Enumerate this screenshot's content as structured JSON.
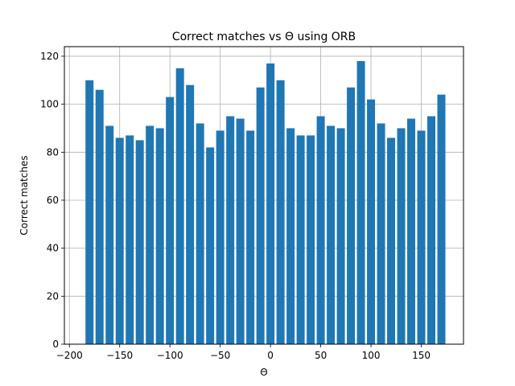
{
  "chart_data": {
    "type": "bar",
    "title": "Correct matches vs Θ  using ORB",
    "xlabel": "Θ",
    "ylabel": "Correct matches",
    "xlim": [
      -205,
      192
    ],
    "ylim": [
      0,
      124
    ],
    "xticks": [
      -200,
      -150,
      -100,
      -50,
      0,
      50,
      100,
      150
    ],
    "xtick_labels": [
      "−200",
      "−150",
      "−100",
      "−50",
      "0",
      "50",
      "100",
      "150"
    ],
    "yticks": [
      0,
      20,
      40,
      60,
      80,
      100,
      120
    ],
    "ytick_labels": [
      "0",
      "20",
      "40",
      "60",
      "80",
      "100",
      "120"
    ],
    "grid": true,
    "bar_color": "#1f77b4",
    "bar_width": 8,
    "x": [
      -180,
      -170,
      -160,
      -150,
      -140,
      -130,
      -120,
      -110,
      -100,
      -90,
      -80,
      -70,
      -60,
      -50,
      -40,
      -30,
      -20,
      -10,
      0,
      10,
      20,
      30,
      40,
      50,
      60,
      70,
      80,
      90,
      100,
      110,
      120,
      130,
      140,
      150,
      160,
      170
    ],
    "values": [
      110,
      106,
      91,
      86,
      87,
      85,
      91,
      90,
      103,
      115,
      108,
      92,
      82,
      89,
      95,
      94,
      89,
      107,
      117,
      110,
      90,
      87,
      87,
      95,
      91,
      90,
      107,
      118,
      102,
      92,
      86,
      90,
      94,
      89,
      95,
      104
    ]
  }
}
